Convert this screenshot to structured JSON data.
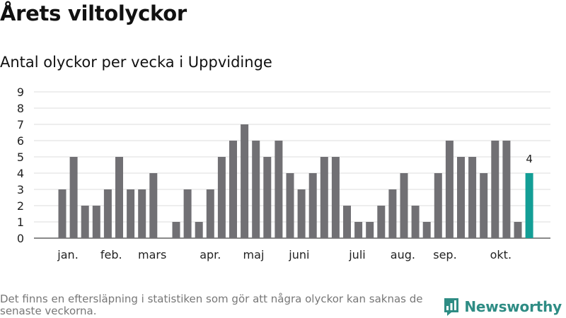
{
  "title": "Årets viltolyckor",
  "subtitle": "Antal olyckor per vecka i Uppvidinge",
  "footnote": "Det finns en eftersläpning i statistiken som gör att några olyckor kan saknas de senaste veckorna.",
  "brand": "Newsworthy",
  "colors": {
    "bar": "#717074",
    "highlight": "#139e96",
    "grid": "#dddddd",
    "brand": "#2e8c84"
  },
  "chart_data": {
    "type": "bar",
    "title": "Årets viltolyckor",
    "subtitle": "Antal olyckor per vecka i Uppvidinge",
    "xlabel": "",
    "ylabel": "",
    "ylim": [
      0,
      9
    ],
    "yticks": [
      0,
      1,
      2,
      3,
      4,
      5,
      6,
      7,
      8,
      9
    ],
    "grid": true,
    "legend": "none",
    "values": [
      3,
      5,
      2,
      2,
      3,
      5,
      3,
      3,
      4,
      0,
      1,
      3,
      1,
      3,
      5,
      6,
      7,
      6,
      5,
      6,
      4,
      3,
      4,
      5,
      5,
      2,
      1,
      1,
      2,
      3,
      4,
      2,
      1,
      4,
      6,
      5,
      5,
      4,
      6,
      6,
      1,
      4
    ],
    "month_labels": [
      {
        "label": "jan.",
        "bar_index": 0.5
      },
      {
        "label": "feb.",
        "bar_index": 4.3
      },
      {
        "label": "mars",
        "bar_index": 7.9
      },
      {
        "label": "apr.",
        "bar_index": 13.0
      },
      {
        "label": "maj",
        "bar_index": 16.8
      },
      {
        "label": "juni",
        "bar_index": 20.8
      },
      {
        "label": "juli",
        "bar_index": 25.9
      },
      {
        "label": "aug.",
        "bar_index": 29.9
      },
      {
        "label": "sep.",
        "bar_index": 33.6
      },
      {
        "label": "okt.",
        "bar_index": 38.5
      }
    ],
    "highlight_index": 41,
    "highlight_label": "4"
  }
}
